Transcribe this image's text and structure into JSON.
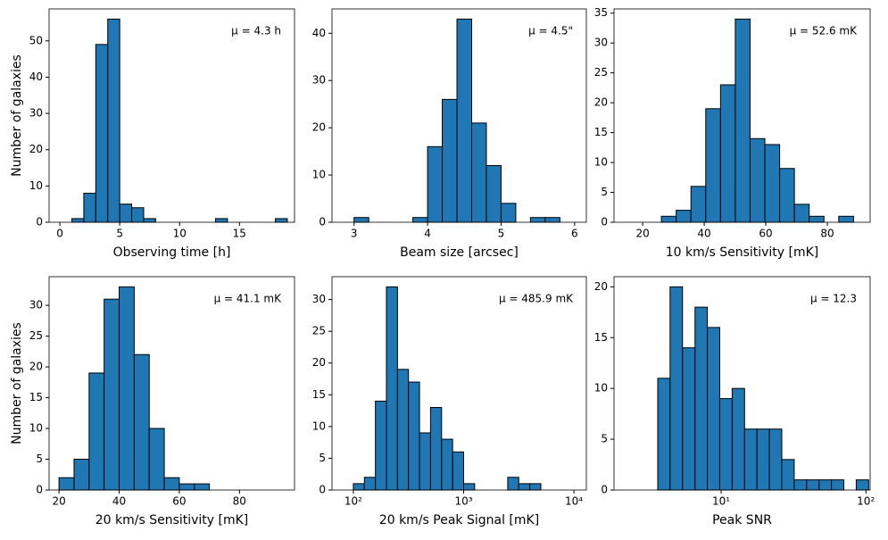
{
  "chart_data": [
    {
      "type": "histogram",
      "xlabel": "Observing time [h]",
      "ylabel": "Number of galaxies",
      "annotation": "μ = 4.3 h",
      "bins": [
        1,
        2,
        3,
        4,
        5,
        6,
        7,
        8,
        9,
        10,
        11,
        12,
        13,
        14,
        15,
        16,
        17,
        18,
        19
      ],
      "values": [
        1,
        8,
        49,
        56,
        5,
        4,
        1,
        0,
        0,
        0,
        0,
        0,
        1,
        0,
        0,
        0,
        0,
        1
      ],
      "color": "#1f77b4",
      "edgecolor": "#000000",
      "xlim": [
        -0.9,
        19.6
      ],
      "xticks": [
        0,
        5,
        10,
        15
      ],
      "ylim": [
        0,
        58.8
      ],
      "yticks": [
        0,
        10,
        20,
        30,
        40,
        50
      ]
    },
    {
      "type": "histogram",
      "xlabel": "Beam size [arcsec]",
      "annotation": "μ = 4.5\"",
      "bins": [
        3.0,
        3.2,
        3.4,
        3.6,
        3.8,
        4.0,
        4.2,
        4.4,
        4.6,
        4.8,
        5.0,
        5.2,
        5.4,
        5.6,
        5.8
      ],
      "values": [
        1,
        0,
        0,
        0,
        1,
        16,
        26,
        43,
        21,
        12,
        4,
        0,
        1,
        1
      ],
      "color": "#1f77b4",
      "edgecolor": "#000000",
      "xlim": [
        2.7,
        6.16
      ],
      "xticks": [
        3,
        4,
        5,
        6
      ],
      "ylim": [
        0,
        45.15
      ],
      "yticks": [
        0,
        10,
        20,
        30,
        40
      ]
    },
    {
      "type": "histogram",
      "xlabel": "10 km/s Sensitivity [mK]",
      "annotation": "μ = 52.6 mK",
      "bins": [
        21.3,
        26.1,
        30.9,
        35.7,
        40.5,
        45.3,
        50.1,
        54.9,
        59.7,
        64.5,
        69.3,
        74.1,
        78.9,
        83.7,
        88.5,
        93.3
      ],
      "values": [
        0,
        1,
        2,
        6,
        19,
        23,
        34,
        14,
        13,
        9,
        3,
        1,
        0,
        1,
        0
      ],
      "color": "#1f77b4",
      "edgecolor": "#000000",
      "xlim": [
        10.7,
        93.9
      ],
      "xticks": [
        20,
        40,
        60,
        80
      ],
      "ylim": [
        0,
        35.7
      ],
      "yticks": [
        0,
        5,
        10,
        15,
        20,
        25,
        30,
        35
      ]
    },
    {
      "type": "histogram",
      "xlabel": "20 km/s Sensitivity [mK]",
      "ylabel": "Number of galaxies",
      "annotation": "μ = 41.1 mK",
      "bins": [
        20,
        25,
        30,
        35,
        40,
        45,
        50,
        55,
        60,
        65,
        70,
        75,
        80,
        85,
        90,
        95
      ],
      "values": [
        2,
        5,
        19,
        31,
        33,
        22,
        10,
        2,
        1,
        1,
        0,
        0,
        0,
        0,
        0
      ],
      "color": "#1f77b4",
      "edgecolor": "#000000",
      "xlim": [
        16.7,
        98.3
      ],
      "xticks": [
        20,
        40,
        60,
        80
      ],
      "ylim": [
        0,
        34.65
      ],
      "yticks": [
        0,
        5,
        10,
        15,
        20,
        25,
        30
      ]
    },
    {
      "type": "histogram",
      "xlabel": "20 km/s Peak Signal [mK]",
      "annotation": "μ = 485.9 mK",
      "xscale": "log",
      "bins": [
        100,
        125.9,
        158.5,
        199.5,
        251.2,
        316.2,
        398.1,
        501.2,
        631,
        794.3,
        1000,
        1258.9,
        1584.9,
        1995.3,
        2511.9,
        3162.3,
        3981.1,
        5011.9,
        6309.6,
        7943.3,
        10000
      ],
      "values": [
        1,
        2,
        14,
        32,
        19,
        17,
        9,
        13,
        8,
        6,
        1,
        0,
        0,
        0,
        2,
        1,
        1,
        0,
        0,
        0
      ],
      "color": "#1f77b4",
      "edgecolor": "#000000",
      "xlim": [
        64,
        12970
      ],
      "xticks": [
        {
          "value": 100,
          "label": "10²"
        },
        {
          "value": 1000,
          "label": "10³"
        },
        {
          "value": 10000,
          "label": "10⁴"
        }
      ],
      "ylim": [
        0,
        33.6
      ],
      "yticks": [
        0,
        5,
        10,
        15,
        20,
        25,
        30
      ]
    },
    {
      "type": "histogram",
      "xlabel": "Peak SNR",
      "annotation": "μ = 12.3",
      "xscale": "log",
      "bins": [
        3.65,
        4.44,
        5.41,
        6.6,
        8.03,
        9.78,
        11.92,
        14.52,
        17.69,
        21.54,
        26.24,
        31.97,
        38.94,
        47.44,
        57.79,
        70.4,
        85.76,
        104.5
      ],
      "values": [
        11,
        20,
        14,
        18,
        16,
        9,
        10,
        6,
        6,
        6,
        3,
        1,
        1,
        1,
        1,
        0,
        1
      ],
      "color": "#1f77b4",
      "edgecolor": "#000000",
      "xlim": [
        1.82,
        107
      ],
      "xticks": [
        {
          "value": 10,
          "label": "10¹"
        },
        {
          "value": 100,
          "label": "10²"
        }
      ],
      "ylim": [
        0,
        21
      ],
      "yticks": [
        0,
        5,
        10,
        15,
        20
      ]
    }
  ]
}
